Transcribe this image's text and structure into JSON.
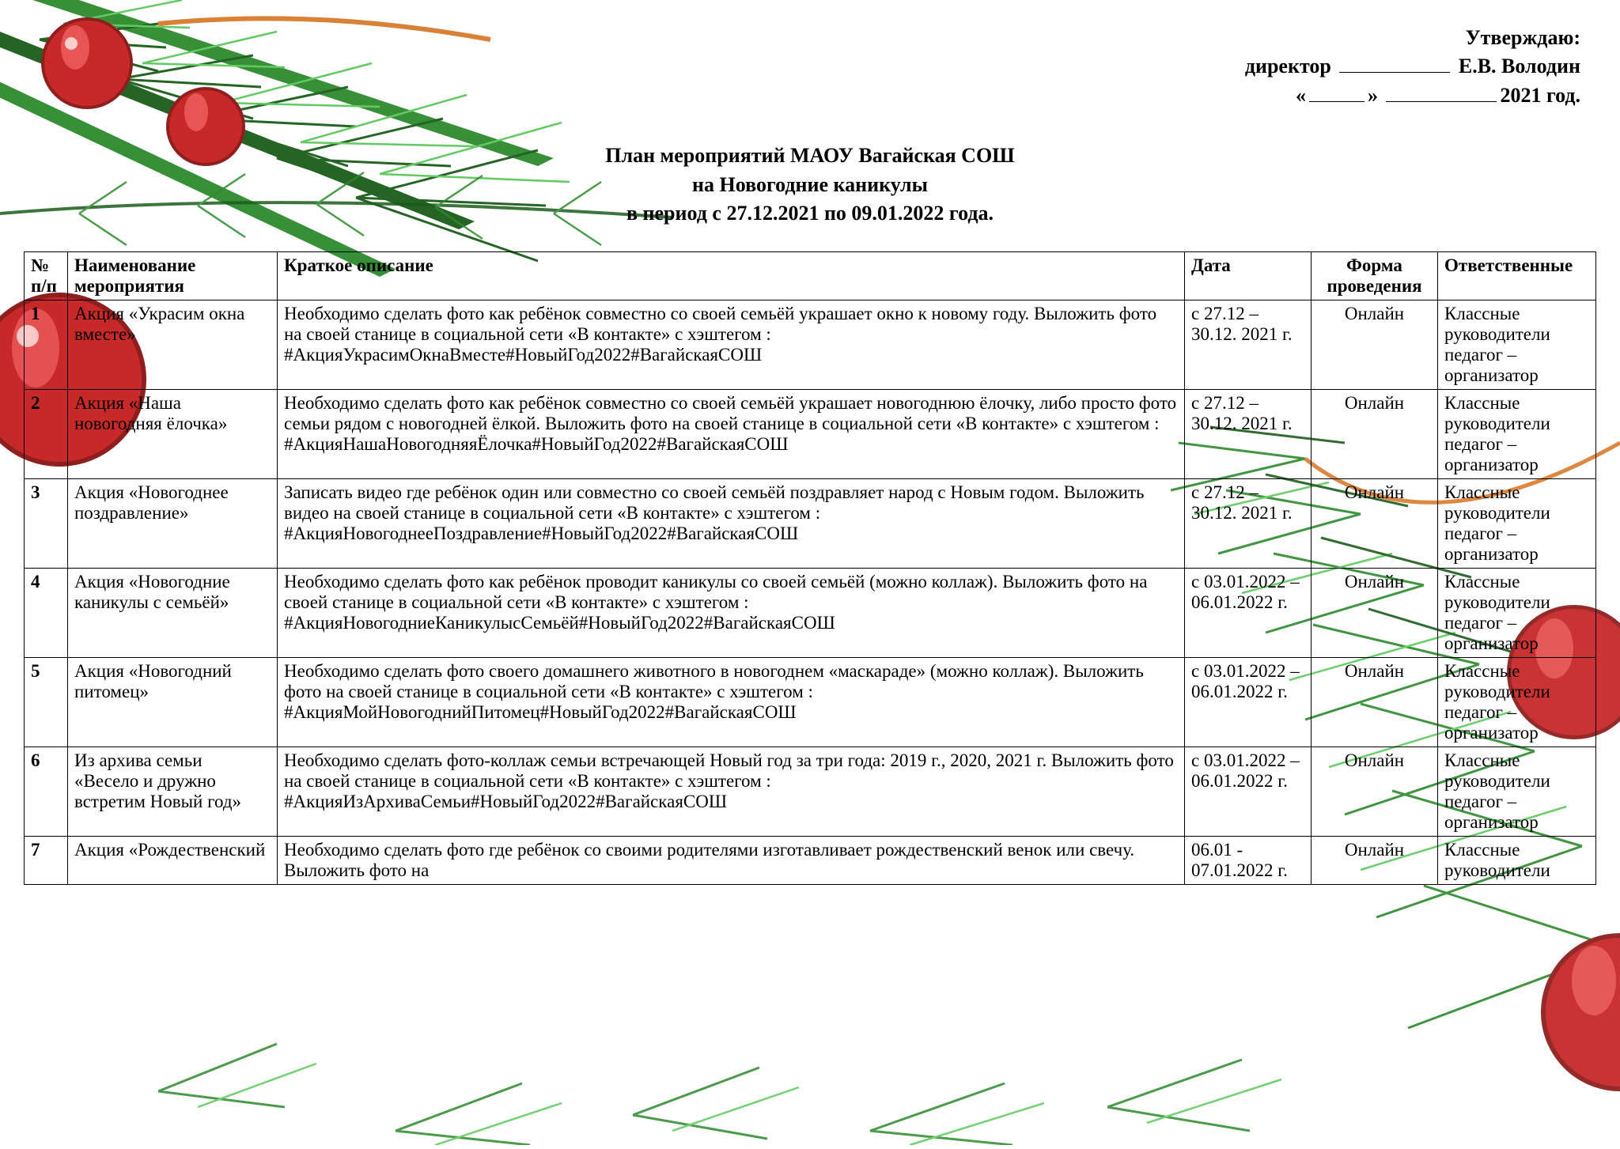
{
  "colors": {
    "pine_green_dark": "#1a5c1a",
    "pine_green_mid": "#2d8a2d",
    "pine_green_light": "#5bc85b",
    "bauble_red": "#c41e1e",
    "bauble_red_dark": "#8a1414",
    "bauble_highlight": "#ff6b6b",
    "orange_accent": "#d97b2e",
    "white": "#ffffff",
    "black": "#000000"
  },
  "header": {
    "approve": "Утверждаю:",
    "director_label": "директор",
    "director_name": "Е.В. Володин",
    "year_suffix": "2021 год."
  },
  "title": {
    "line1": "План мероприятий МАОУ Вагайская СОШ",
    "line2": "на Новогодние каникулы",
    "line3": "в период с 27.12.2021 по 09.01.2022 года."
  },
  "table": {
    "headers": {
      "num": "№ п/п",
      "name": "Наименование мероприятия",
      "desc": "Краткое описание",
      "date": "Дата",
      "form": "Форма проведения",
      "resp": "Ответственные"
    },
    "rows": [
      {
        "num": "1",
        "name": "Акция «Украсим окна вместе»",
        "desc": "Необходимо сделать фото как ребёнок совместно со своей семьёй украшает окно к новому году. Выложить фото на своей станице в социальной сети «В контакте» с хэштегом : #АкцияУкрасимОкнаВместе#НовыйГод2022#ВагайскаяСОШ",
        "date": "с 27.12 – 30.12. 2021 г.",
        "form": "Онлайн",
        "resp": "Классные руководители педагог – организатор"
      },
      {
        "num": "2",
        "name": "Акция «Наша новогодняя ёлочка»",
        "desc": "Необходимо сделать фото как ребёнок совместно со своей семьёй украшает новогоднюю ёлочку, либо просто фото семьи рядом с новогодней ёлкой. Выложить фото на своей станице в социальной сети «В контакте» с хэштегом : #АкцияНашаНовогодняяЁлочка#НовыйГод2022#ВагайскаяСОШ",
        "date": "с 27.12 – 30.12. 2021 г.",
        "form": "Онлайн",
        "resp": "Классные руководители педагог – организатор"
      },
      {
        "num": "3",
        "name": "Акция «Новогоднее поздравление»",
        "desc": "Записать видео где ребёнок один или совместно со своей семьёй поздравляет народ с Новым годом. Выложить видео на своей станице в социальной сети «В контакте» с хэштегом : #АкцияНовогоднееПоздравление#НовыйГод2022#ВагайскаяСОШ",
        "date": "с 27.12 – 30.12. 2021 г.",
        "form": "Онлайн",
        "resp": "Классные руководители педагог – организатор"
      },
      {
        "num": "4",
        "name": "Акция «Новогодние каникулы с семьёй»",
        "desc": "Необходимо сделать фото как ребёнок проводит каникулы со своей семьёй (можно коллаж). Выложить фото на своей станице в социальной сети «В контакте» с хэштегом : #АкцияНовогодниеКаникулысСемьёй#НовыйГод2022#ВагайскаяСОШ",
        "date": "с 03.01.2022 – 06.01.2022 г.",
        "form": "Онлайн",
        "resp": "Классные руководители педагог – организатор"
      },
      {
        "num": "5",
        "name": "Акция «Новогодний питомец»",
        "desc": "Необходимо сделать фото своего домашнего животного в новогоднем «маскараде» (можно коллаж). Выложить фото на своей станице в социальной сети «В контакте» с хэштегом : #АкцияМойНовогоднийПитомец#НовыйГод2022#ВагайскаяСОШ",
        "date": "с 03.01.2022 – 06.01.2022 г.",
        "form": "Онлайн",
        "resp": "Классные руководители педагог – организатор"
      },
      {
        "num": "6",
        "name": "Из архива семьи «Весело и дружно встретим Новый год»",
        "desc": "Необходимо сделать фото-коллаж семьи встречающей Новый год за три года: 2019 г., 2020, 2021 г. Выложить фото на своей станице в социальной сети «В контакте» с хэштегом : #АкцияИзАрхиваСемьи#НовыйГод2022#ВагайскаяСОШ",
        "date": "с 03.01.2022 – 06.01.2022 г.",
        "form": "Онлайн",
        "resp": "Классные руководители педагог – организатор"
      },
      {
        "num": "7",
        "name": "Акция «Рождественский",
        "desc": "Необходимо сделать фото где ребёнок со своими родителями изготавливает рождественский венок или свечу. Выложить фото на",
        "date": "06.01 - 07.01.2022 г.",
        "form": "Онлайн",
        "resp": "Классные руководители"
      }
    ]
  }
}
